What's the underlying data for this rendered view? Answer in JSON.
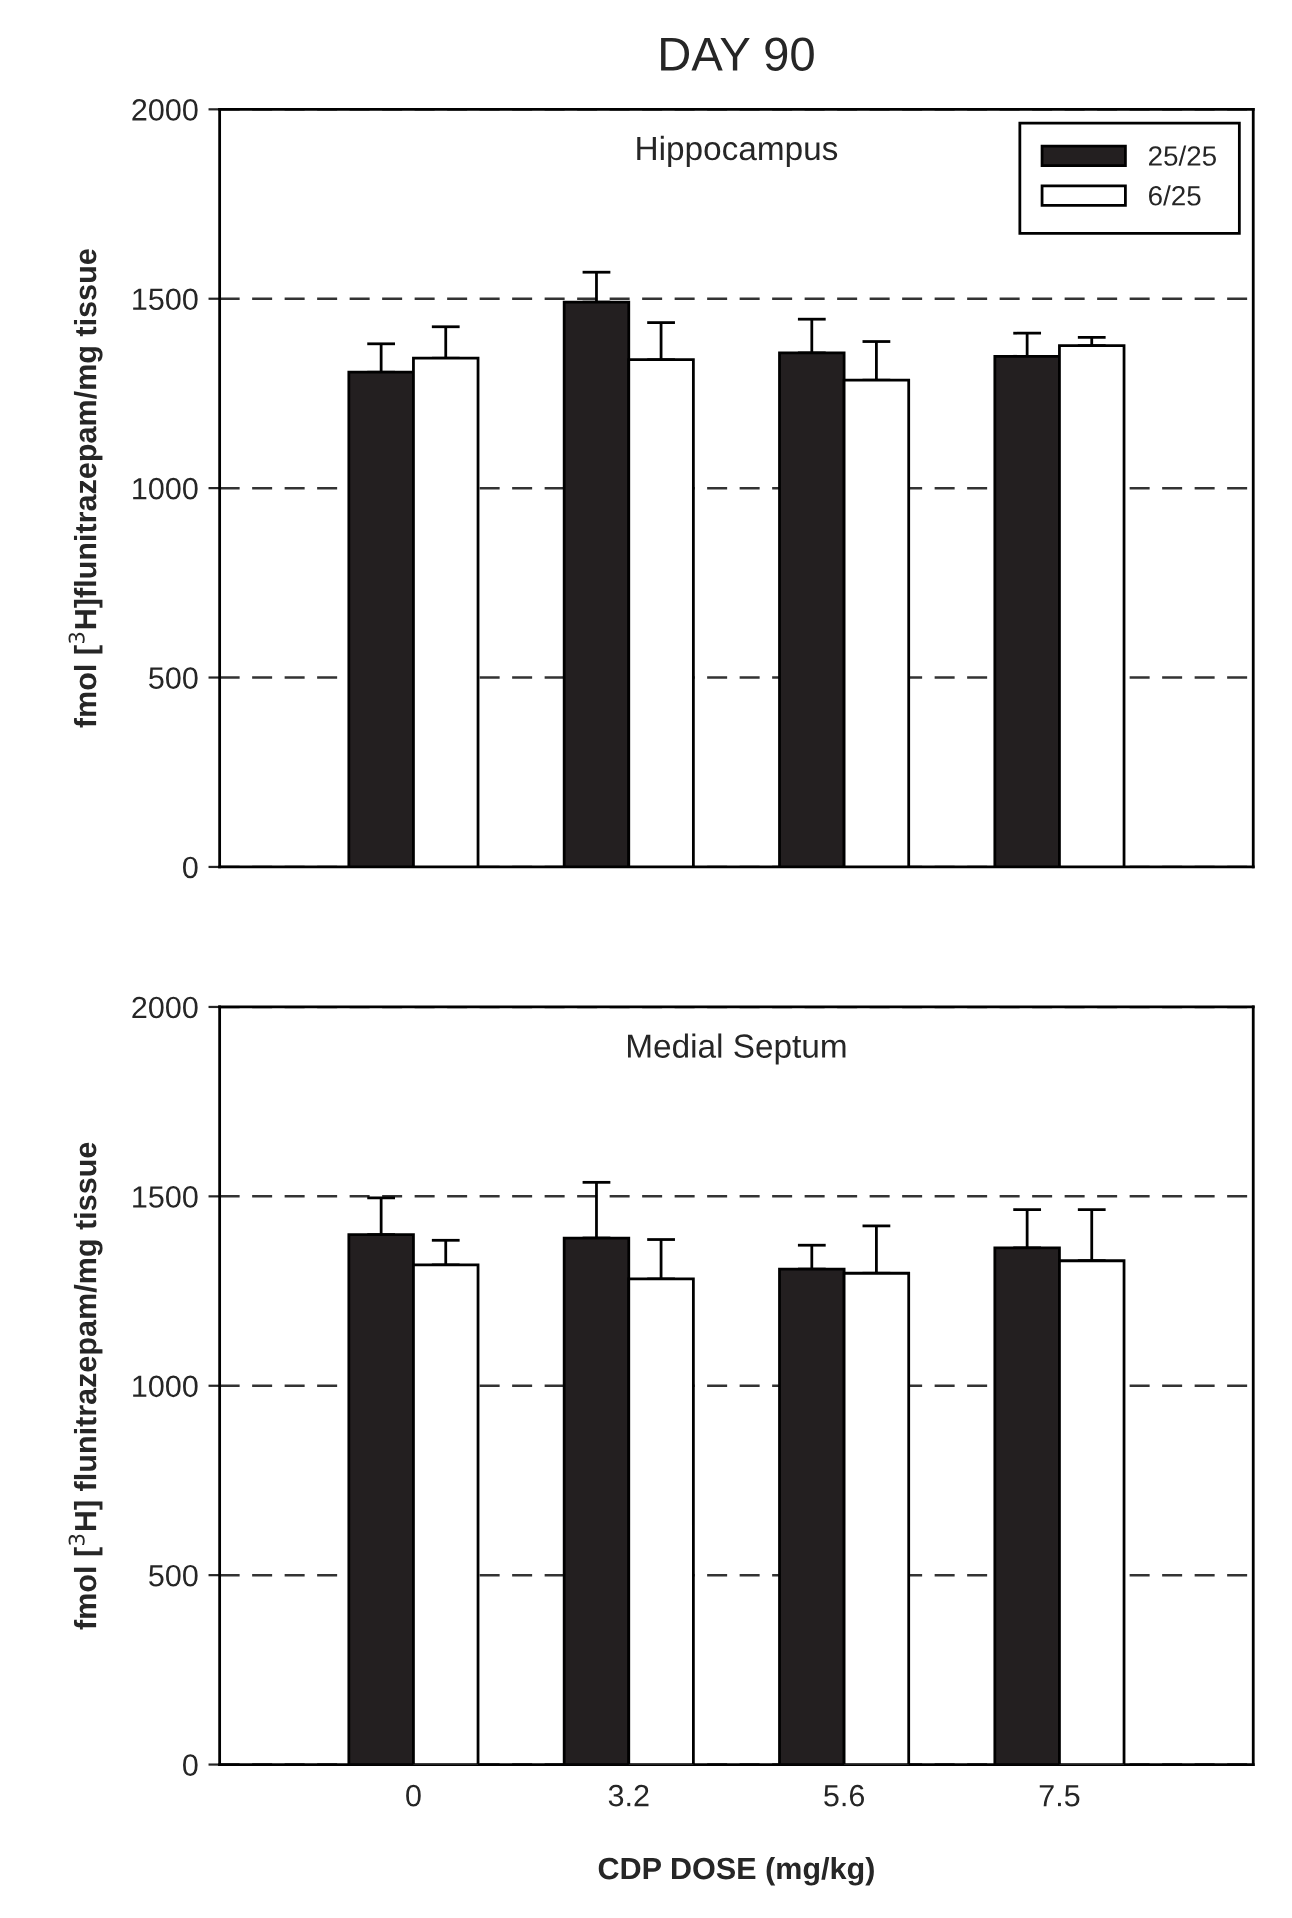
{
  "chart_data": [
    {
      "type": "bar",
      "title": "DAY 90",
      "ylabel": "fmol [$^{3}$H]flunitrazepam/mg tissue",
      "annotations": [
        "Hippocampus"
      ],
      "categories": [
        "0",
        "3.2",
        "5.6",
        "7.5"
      ],
      "ylim": [
        0,
        2000
      ],
      "yticks": [
        0,
        500,
        1000,
        1500,
        2000
      ],
      "grid": "y",
      "legend": "top right",
      "tick_labels": "y",
      "series": [
        {
          "name": "25/25",
          "color": "#231f20",
          "values": [
            1306,
            1491,
            1357,
            1348
          ],
          "errors": [
            [
              1306,
              1381
            ],
            [
              1491,
              1570
            ],
            [
              1357,
              1446
            ],
            [
              1348,
              1409
            ]
          ]
        },
        {
          "name": "6/25",
          "color": "#ffffff",
          "values": [
            1343,
            1339,
            1285,
            1376
          ],
          "errors": [
            [
              1343,
              1426
            ],
            [
              1339,
              1437
            ],
            [
              1285,
              1387
            ],
            [
              1376,
              1398
            ]
          ]
        }
      ]
    },
    {
      "type": "bar",
      "xlabel": "CDP DOSE (mg/kg)",
      "ylabel": "fmol [$^{3}$H] flunitrazepam/mg tissue",
      "annotations": [
        "Medial Septum"
      ],
      "categories": [
        "0",
        "3.2",
        "5.6",
        "7.5"
      ],
      "ylim": [
        0,
        2000
      ],
      "yticks": [
        0,
        500,
        1000,
        1500,
        2000
      ],
      "grid": "y",
      "series": [
        {
          "color": "#231f20",
          "values": [
            1399,
            1390,
            1308,
            1364
          ],
          "errors": [
            [
              1399,
              1496
            ],
            [
              1390,
              1537
            ],
            [
              1308,
              1371
            ],
            [
              1364,
              1465
            ]
          ]
        },
        {
          "color": "#ffffff",
          "values": [
            1319,
            1282,
            1297,
            1330
          ],
          "errors": [
            [
              1319,
              1384
            ],
            [
              1282,
              1386
            ],
            [
              1297,
              1422
            ],
            [
              1330,
              1465
            ]
          ]
        }
      ]
    }
  ]
}
